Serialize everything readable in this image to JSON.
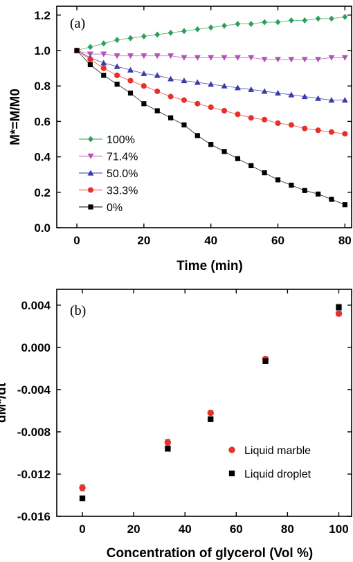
{
  "chart_data": [
    {
      "panel": "(a)",
      "type": "line",
      "xlabel": "Time (min)",
      "ylabel": "M*=M/M0",
      "xlim": [
        -6,
        82
      ],
      "ylim": [
        0,
        1.25
      ],
      "xticks": [
        0,
        20,
        40,
        60,
        80
      ],
      "yticks": [
        0.0,
        0.2,
        0.4,
        0.6,
        0.8,
        1.0,
        1.2
      ],
      "ytick_decimals": 1,
      "legend_position": "lower-left",
      "series": [
        {
          "name": "100%",
          "marker": "diamond",
          "color": "#2ca05a",
          "x": [
            0,
            4,
            8,
            12,
            16,
            20,
            24,
            28,
            32,
            36,
            40,
            44,
            48,
            52,
            56,
            60,
            64,
            68,
            72,
            76,
            80
          ],
          "y": [
            1.0,
            1.02,
            1.04,
            1.06,
            1.07,
            1.08,
            1.09,
            1.1,
            1.11,
            1.12,
            1.13,
            1.14,
            1.15,
            1.15,
            1.16,
            1.16,
            1.17,
            1.17,
            1.18,
            1.18,
            1.19
          ]
        },
        {
          "name": "71.4%",
          "marker": "triangle-down",
          "color": "#b153b8",
          "x": [
            0,
            4,
            8,
            12,
            16,
            20,
            24,
            28,
            32,
            36,
            40,
            44,
            48,
            52,
            56,
            60,
            64,
            68,
            72,
            76,
            80
          ],
          "y": [
            1.0,
            0.98,
            0.98,
            0.97,
            0.97,
            0.97,
            0.97,
            0.97,
            0.96,
            0.96,
            0.96,
            0.96,
            0.96,
            0.96,
            0.95,
            0.95,
            0.95,
            0.95,
            0.95,
            0.96,
            0.96
          ]
        },
        {
          "name": "50.0%",
          "marker": "triangle-up",
          "color": "#3a3aa8",
          "x": [
            0,
            4,
            8,
            12,
            16,
            20,
            24,
            28,
            32,
            36,
            40,
            44,
            48,
            52,
            56,
            60,
            64,
            68,
            72,
            76,
            80
          ],
          "y": [
            1.0,
            0.96,
            0.93,
            0.91,
            0.89,
            0.87,
            0.86,
            0.84,
            0.83,
            0.82,
            0.81,
            0.8,
            0.79,
            0.78,
            0.77,
            0.76,
            0.75,
            0.74,
            0.73,
            0.72,
            0.72
          ]
        },
        {
          "name": "33.3%",
          "marker": "circle",
          "color": "#e8302a",
          "x": [
            0,
            4,
            8,
            12,
            16,
            20,
            24,
            28,
            32,
            36,
            40,
            44,
            48,
            52,
            56,
            60,
            64,
            68,
            72,
            76,
            80
          ],
          "y": [
            1.0,
            0.95,
            0.9,
            0.86,
            0.83,
            0.8,
            0.77,
            0.74,
            0.72,
            0.7,
            0.68,
            0.66,
            0.64,
            0.62,
            0.61,
            0.59,
            0.58,
            0.56,
            0.55,
            0.54,
            0.53
          ]
        },
        {
          "name": "0%",
          "marker": "square",
          "color": "#000000",
          "x": [
            0,
            4,
            8,
            12,
            16,
            20,
            24,
            28,
            32,
            36,
            40,
            44,
            48,
            52,
            56,
            60,
            64,
            68,
            72,
            76,
            80
          ],
          "y": [
            1.0,
            0.92,
            0.86,
            0.81,
            0.76,
            0.7,
            0.66,
            0.62,
            0.58,
            0.52,
            0.47,
            0.43,
            0.39,
            0.35,
            0.31,
            0.27,
            0.24,
            0.21,
            0.19,
            0.16,
            0.13
          ]
        }
      ]
    },
    {
      "panel": "(b)",
      "type": "scatter",
      "xlabel": "Concentration of glycerol (Vol %)",
      "ylabel": "dM*/dt",
      "xlim": [
        -10,
        105
      ],
      "ylim": [
        -0.016,
        0.0055
      ],
      "xticks": [
        0,
        20,
        40,
        60,
        80,
        100
      ],
      "yticks": [
        -0.016,
        -0.012,
        -0.008,
        -0.004,
        0.0,
        0.004
      ],
      "ytick_decimals": 3,
      "legend_position": "lower-right",
      "series": [
        {
          "name": "Liquid marble",
          "marker": "circle",
          "color": "#e8302a",
          "x": [
            0,
            33.3,
            50.0,
            71.4,
            100
          ],
          "y": [
            -0.0133,
            -0.009,
            -0.0062,
            -0.0011,
            0.0032
          ],
          "err": [
            0.0003,
            0.0003,
            0.0002,
            0.0002,
            0.0002
          ]
        },
        {
          "name": "Liquid droplet",
          "marker": "square",
          "color": "#000000",
          "x": [
            0,
            33.3,
            50.0,
            71.4,
            100
          ],
          "y": [
            -0.0143,
            -0.0096,
            -0.0068,
            -0.0013,
            0.0038
          ],
          "err": [
            0.0002,
            0.0002,
            0.0002,
            0.0002,
            0.0003
          ]
        }
      ]
    }
  ]
}
